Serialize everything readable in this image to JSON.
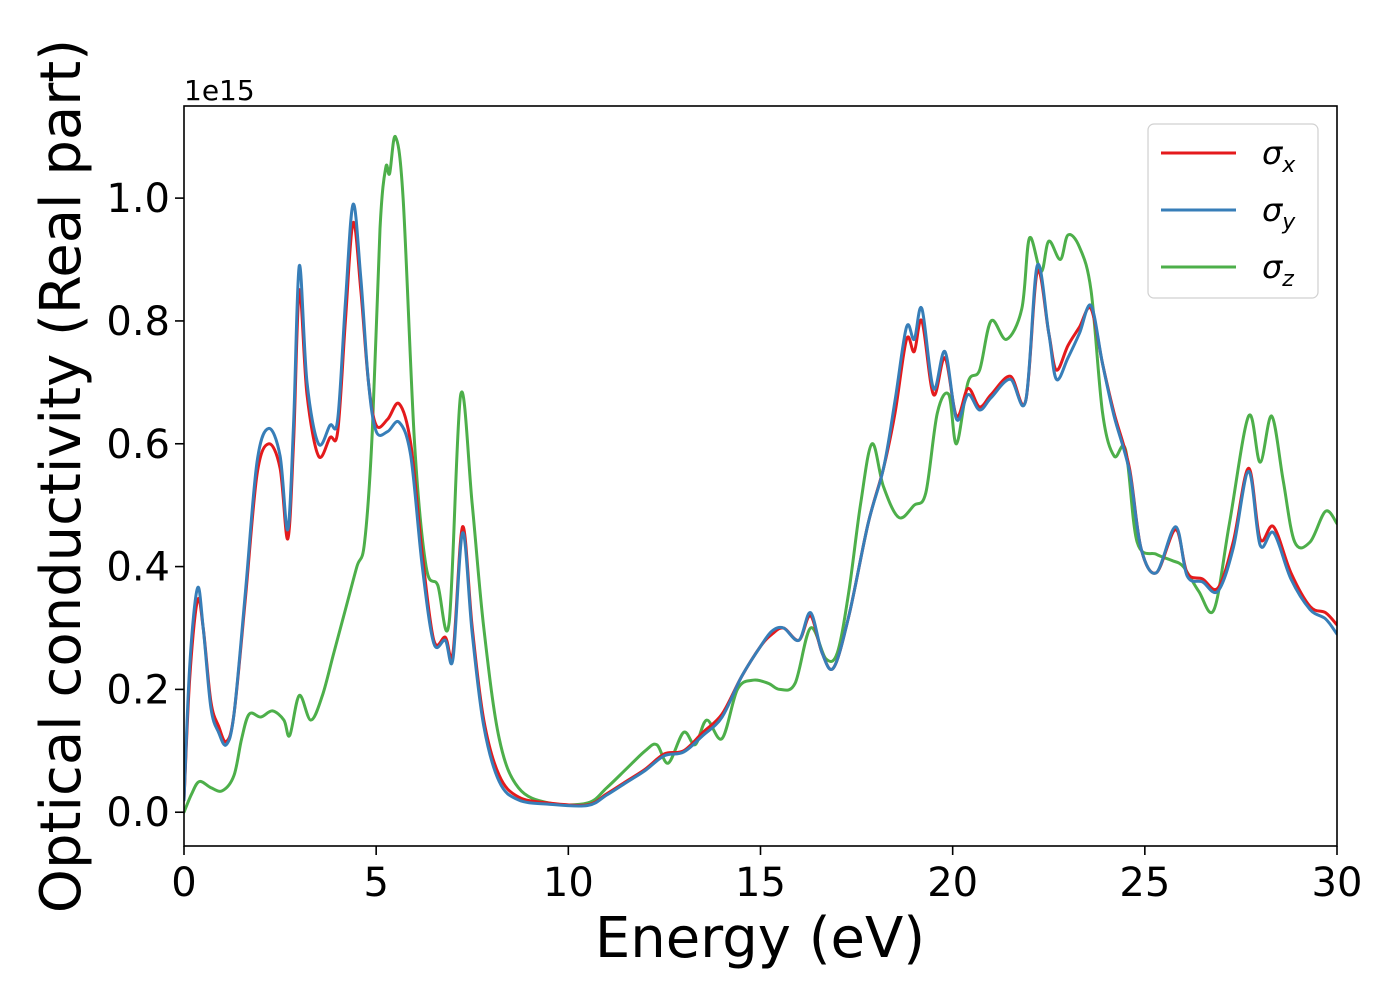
{
  "chart_data": {
    "type": "line",
    "xlabel": "Energy (eV)",
    "ylabel": "Optical conductivity (Real part)",
    "y_offset_text": "1e15",
    "xlim": [
      0,
      30
    ],
    "ylim": [
      -0.055,
      1.15
    ],
    "x_ticks": [
      0,
      5,
      10,
      15,
      20,
      25,
      30
    ],
    "x_tick_labels": [
      "0",
      "5",
      "10",
      "15",
      "20",
      "25",
      "30"
    ],
    "y_ticks": [
      0.0,
      0.2,
      0.4,
      0.6,
      0.8,
      1.0
    ],
    "y_tick_labels": [
      "0.0",
      "0.2",
      "0.4",
      "0.6",
      "0.8",
      "1.0"
    ],
    "grid": false,
    "legend_position": "top-right",
    "series": [
      {
        "name": "σx",
        "symbol": "σ",
        "subscript": "x",
        "color": "#e41a1c",
        "points": [
          [
            0,
            0.02
          ],
          [
            0.15,
            0.22
          ],
          [
            0.35,
            0.345
          ],
          [
            0.5,
            0.3
          ],
          [
            0.7,
            0.18
          ],
          [
            0.9,
            0.14
          ],
          [
            1.1,
            0.115
          ],
          [
            1.3,
            0.16
          ],
          [
            1.6,
            0.35
          ],
          [
            1.9,
            0.55
          ],
          [
            2.2,
            0.6
          ],
          [
            2.5,
            0.56
          ],
          [
            2.7,
            0.445
          ],
          [
            2.85,
            0.6
          ],
          [
            3.0,
            0.85
          ],
          [
            3.2,
            0.68
          ],
          [
            3.5,
            0.58
          ],
          [
            3.8,
            0.61
          ],
          [
            4.0,
            0.62
          ],
          [
            4.2,
            0.8
          ],
          [
            4.4,
            0.96
          ],
          [
            4.6,
            0.85
          ],
          [
            4.8,
            0.7
          ],
          [
            5.0,
            0.63
          ],
          [
            5.3,
            0.64
          ],
          [
            5.6,
            0.665
          ],
          [
            5.9,
            0.6
          ],
          [
            6.2,
            0.42
          ],
          [
            6.5,
            0.28
          ],
          [
            6.8,
            0.285
          ],
          [
            7.0,
            0.26
          ],
          [
            7.25,
            0.465
          ],
          [
            7.5,
            0.3
          ],
          [
            7.8,
            0.15
          ],
          [
            8.2,
            0.06
          ],
          [
            8.7,
            0.025
          ],
          [
            9.5,
            0.015
          ],
          [
            10.5,
            0.012
          ],
          [
            11.0,
            0.03
          ],
          [
            11.5,
            0.05
          ],
          [
            12.0,
            0.07
          ],
          [
            12.5,
            0.095
          ],
          [
            13.0,
            0.1
          ],
          [
            13.5,
            0.13
          ],
          [
            14.0,
            0.16
          ],
          [
            14.5,
            0.22
          ],
          [
            15.0,
            0.27
          ],
          [
            15.3,
            0.29
          ],
          [
            15.6,
            0.3
          ],
          [
            16.0,
            0.28
          ],
          [
            16.3,
            0.32
          ],
          [
            16.6,
            0.26
          ],
          [
            16.9,
            0.235
          ],
          [
            17.3,
            0.32
          ],
          [
            17.8,
            0.47
          ],
          [
            18.2,
            0.56
          ],
          [
            18.5,
            0.65
          ],
          [
            18.8,
            0.77
          ],
          [
            19.0,
            0.75
          ],
          [
            19.2,
            0.8
          ],
          [
            19.5,
            0.68
          ],
          [
            19.8,
            0.74
          ],
          [
            20.1,
            0.645
          ],
          [
            20.4,
            0.69
          ],
          [
            20.7,
            0.66
          ],
          [
            21.0,
            0.68
          ],
          [
            21.5,
            0.71
          ],
          [
            21.9,
            0.67
          ],
          [
            22.2,
            0.88
          ],
          [
            22.5,
            0.78
          ],
          [
            22.7,
            0.72
          ],
          [
            23.0,
            0.76
          ],
          [
            23.3,
            0.79
          ],
          [
            23.6,
            0.82
          ],
          [
            23.9,
            0.73
          ],
          [
            24.2,
            0.65
          ],
          [
            24.6,
            0.56
          ],
          [
            24.9,
            0.43
          ],
          [
            25.3,
            0.39
          ],
          [
            25.8,
            0.46
          ],
          [
            26.1,
            0.39
          ],
          [
            26.5,
            0.38
          ],
          [
            26.9,
            0.365
          ],
          [
            27.3,
            0.44
          ],
          [
            27.7,
            0.56
          ],
          [
            28.0,
            0.445
          ],
          [
            28.35,
            0.465
          ],
          [
            28.8,
            0.39
          ],
          [
            29.3,
            0.335
          ],
          [
            29.7,
            0.325
          ],
          [
            30.0,
            0.305
          ]
        ]
      },
      {
        "name": "σy",
        "symbol": "σ",
        "subscript": "y",
        "color": "#377eb8",
        "points": [
          [
            0,
            0.02
          ],
          [
            0.15,
            0.24
          ],
          [
            0.35,
            0.365
          ],
          [
            0.5,
            0.3
          ],
          [
            0.7,
            0.17
          ],
          [
            0.9,
            0.13
          ],
          [
            1.1,
            0.11
          ],
          [
            1.3,
            0.16
          ],
          [
            1.6,
            0.36
          ],
          [
            1.9,
            0.57
          ],
          [
            2.2,
            0.625
          ],
          [
            2.5,
            0.58
          ],
          [
            2.7,
            0.46
          ],
          [
            2.85,
            0.63
          ],
          [
            3.0,
            0.89
          ],
          [
            3.2,
            0.7
          ],
          [
            3.5,
            0.6
          ],
          [
            3.8,
            0.63
          ],
          [
            4.0,
            0.64
          ],
          [
            4.2,
            0.83
          ],
          [
            4.4,
            0.99
          ],
          [
            4.6,
            0.87
          ],
          [
            4.8,
            0.7
          ],
          [
            5.0,
            0.62
          ],
          [
            5.3,
            0.62
          ],
          [
            5.6,
            0.635
          ],
          [
            5.9,
            0.58
          ],
          [
            6.2,
            0.4
          ],
          [
            6.5,
            0.275
          ],
          [
            6.8,
            0.28
          ],
          [
            7.0,
            0.25
          ],
          [
            7.25,
            0.455
          ],
          [
            7.5,
            0.29
          ],
          [
            7.8,
            0.14
          ],
          [
            8.2,
            0.05
          ],
          [
            8.7,
            0.02
          ],
          [
            9.5,
            0.013
          ],
          [
            10.5,
            0.011
          ],
          [
            11.0,
            0.028
          ],
          [
            11.5,
            0.048
          ],
          [
            12.0,
            0.068
          ],
          [
            12.5,
            0.092
          ],
          [
            13.0,
            0.098
          ],
          [
            13.5,
            0.125
          ],
          [
            14.0,
            0.155
          ],
          [
            14.5,
            0.22
          ],
          [
            15.0,
            0.27
          ],
          [
            15.3,
            0.295
          ],
          [
            15.6,
            0.3
          ],
          [
            16.0,
            0.28
          ],
          [
            16.3,
            0.325
          ],
          [
            16.6,
            0.26
          ],
          [
            16.9,
            0.235
          ],
          [
            17.3,
            0.32
          ],
          [
            17.8,
            0.47
          ],
          [
            18.2,
            0.56
          ],
          [
            18.5,
            0.67
          ],
          [
            18.8,
            0.79
          ],
          [
            19.0,
            0.77
          ],
          [
            19.2,
            0.82
          ],
          [
            19.5,
            0.69
          ],
          [
            19.8,
            0.75
          ],
          [
            20.1,
            0.64
          ],
          [
            20.4,
            0.68
          ],
          [
            20.7,
            0.655
          ],
          [
            21.0,
            0.675
          ],
          [
            21.5,
            0.705
          ],
          [
            21.9,
            0.67
          ],
          [
            22.2,
            0.89
          ],
          [
            22.5,
            0.78
          ],
          [
            22.7,
            0.705
          ],
          [
            23.0,
            0.74
          ],
          [
            23.3,
            0.78
          ],
          [
            23.6,
            0.825
          ],
          [
            23.9,
            0.73
          ],
          [
            24.2,
            0.645
          ],
          [
            24.6,
            0.555
          ],
          [
            24.9,
            0.43
          ],
          [
            25.3,
            0.39
          ],
          [
            25.8,
            0.465
          ],
          [
            26.1,
            0.385
          ],
          [
            26.5,
            0.375
          ],
          [
            26.9,
            0.36
          ],
          [
            27.3,
            0.43
          ],
          [
            27.7,
            0.555
          ],
          [
            28.0,
            0.435
          ],
          [
            28.35,
            0.455
          ],
          [
            28.8,
            0.38
          ],
          [
            29.3,
            0.33
          ],
          [
            29.7,
            0.315
          ],
          [
            30.0,
            0.29
          ]
        ]
      },
      {
        "name": "σz",
        "symbol": "σ",
        "subscript": "z",
        "color": "#4daf4a",
        "points": [
          [
            0,
            0.0
          ],
          [
            0.2,
            0.03
          ],
          [
            0.4,
            0.05
          ],
          [
            0.7,
            0.04
          ],
          [
            1.0,
            0.035
          ],
          [
            1.3,
            0.06
          ],
          [
            1.5,
            0.12
          ],
          [
            1.7,
            0.16
          ],
          [
            2.0,
            0.155
          ],
          [
            2.3,
            0.165
          ],
          [
            2.6,
            0.15
          ],
          [
            2.75,
            0.125
          ],
          [
            3.0,
            0.19
          ],
          [
            3.3,
            0.15
          ],
          [
            3.6,
            0.19
          ],
          [
            3.9,
            0.26
          ],
          [
            4.2,
            0.33
          ],
          [
            4.5,
            0.4
          ],
          [
            4.7,
            0.44
          ],
          [
            4.9,
            0.62
          ],
          [
            5.1,
            0.95
          ],
          [
            5.25,
            1.05
          ],
          [
            5.35,
            1.04
          ],
          [
            5.5,
            1.1
          ],
          [
            5.7,
            1.0
          ],
          [
            6.0,
            0.6
          ],
          [
            6.3,
            0.4
          ],
          [
            6.6,
            0.37
          ],
          [
            6.9,
            0.31
          ],
          [
            7.2,
            0.68
          ],
          [
            7.5,
            0.5
          ],
          [
            7.8,
            0.3
          ],
          [
            8.2,
            0.12
          ],
          [
            8.7,
            0.04
          ],
          [
            9.5,
            0.015
          ],
          [
            10.5,
            0.015
          ],
          [
            11.0,
            0.04
          ],
          [
            11.5,
            0.07
          ],
          [
            12.0,
            0.1
          ],
          [
            12.3,
            0.11
          ],
          [
            12.6,
            0.08
          ],
          [
            13.0,
            0.13
          ],
          [
            13.3,
            0.11
          ],
          [
            13.6,
            0.15
          ],
          [
            14.0,
            0.12
          ],
          [
            14.4,
            0.2
          ],
          [
            14.8,
            0.215
          ],
          [
            15.2,
            0.21
          ],
          [
            15.5,
            0.2
          ],
          [
            15.9,
            0.21
          ],
          [
            16.3,
            0.3
          ],
          [
            16.7,
            0.25
          ],
          [
            17.0,
            0.26
          ],
          [
            17.3,
            0.36
          ],
          [
            17.6,
            0.5
          ],
          [
            17.9,
            0.6
          ],
          [
            18.2,
            0.53
          ],
          [
            18.6,
            0.48
          ],
          [
            19.0,
            0.5
          ],
          [
            19.3,
            0.52
          ],
          [
            19.6,
            0.65
          ],
          [
            19.9,
            0.68
          ],
          [
            20.1,
            0.6
          ],
          [
            20.4,
            0.7
          ],
          [
            20.7,
            0.72
          ],
          [
            21.0,
            0.8
          ],
          [
            21.4,
            0.77
          ],
          [
            21.8,
            0.82
          ],
          [
            22.0,
            0.935
          ],
          [
            22.3,
            0.88
          ],
          [
            22.5,
            0.93
          ],
          [
            22.8,
            0.9
          ],
          [
            23.0,
            0.94
          ],
          [
            23.3,
            0.92
          ],
          [
            23.6,
            0.85
          ],
          [
            23.9,
            0.65
          ],
          [
            24.2,
            0.58
          ],
          [
            24.5,
            0.59
          ],
          [
            24.8,
            0.44
          ],
          [
            25.3,
            0.42
          ],
          [
            25.7,
            0.41
          ],
          [
            26.0,
            0.4
          ],
          [
            26.4,
            0.36
          ],
          [
            26.8,
            0.33
          ],
          [
            27.2,
            0.47
          ],
          [
            27.7,
            0.645
          ],
          [
            28.0,
            0.57
          ],
          [
            28.3,
            0.645
          ],
          [
            28.6,
            0.54
          ],
          [
            28.9,
            0.44
          ],
          [
            29.3,
            0.44
          ],
          [
            29.7,
            0.49
          ],
          [
            30.0,
            0.47
          ]
        ]
      }
    ]
  }
}
